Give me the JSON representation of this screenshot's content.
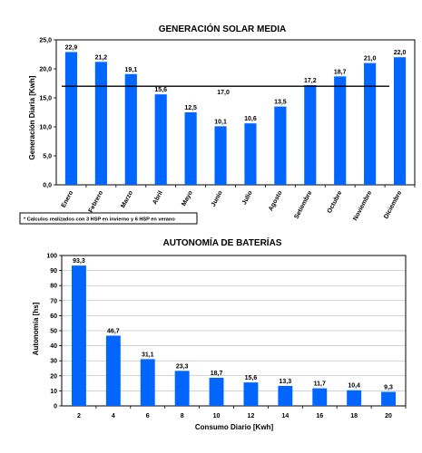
{
  "chart_data": [
    {
      "type": "bar",
      "title": "GENERACIÓN SOLAR MEDIA",
      "ylabel": "Generación Diaria [Kwh]",
      "xlabel": "",
      "categories": [
        "Enero",
        "Febrero",
        "Marzo",
        "Abril",
        "Mayo",
        "Junio",
        "Julio",
        "Agosto",
        "Setiembre",
        "Octubre",
        "Noviembre",
        "Diciembre"
      ],
      "values": [
        22.9,
        21.2,
        19.1,
        15.6,
        12.5,
        10.1,
        10.6,
        13.5,
        17.2,
        18.7,
        21.0,
        22.0
      ],
      "value_labels": [
        "22,9",
        "21,2",
        "19,1",
        "15,6",
        "12,5",
        "10,1",
        "10,6",
        "13,5",
        "17,2",
        "18,7",
        "21,0",
        "22,0"
      ],
      "ylim": [
        0,
        25
      ],
      "yticks": [
        0,
        5,
        10,
        15,
        20,
        25
      ],
      "ytick_labels": [
        "0,0",
        "5,0",
        "10,0",
        "15,0",
        "20,0",
        "25,0"
      ],
      "reference_line": {
        "value": 17.0,
        "label": "17,0"
      },
      "grid": false,
      "legend": "none",
      "bar_color": "#0066ff",
      "note": "* Calculos realizados con 3 HSP en invierno y 6 HSP en verano"
    },
    {
      "type": "bar",
      "title": "AUTONOMÍA DE BATERÍAS",
      "ylabel": "Autonomía [hs]",
      "xlabel": "Consumo Diario [Kwh]",
      "categories": [
        "2",
        "4",
        "6",
        "8",
        "10",
        "12",
        "14",
        "16",
        "18",
        "20"
      ],
      "values": [
        93.3,
        46.7,
        31.1,
        23.3,
        18.7,
        15.6,
        13.3,
        11.7,
        10.4,
        9.3
      ],
      "value_labels": [
        "93,3",
        "46,7",
        "31,1",
        "23,3",
        "18,7",
        "15,6",
        "13,3",
        "11,7",
        "10,4",
        "9,3"
      ],
      "ylim": [
        0,
        100
      ],
      "yticks": [
        0,
        10,
        20,
        30,
        40,
        50,
        60,
        70,
        80,
        90,
        100
      ],
      "ytick_labels": [
        "0",
        "10",
        "20",
        "30",
        "40",
        "50",
        "60",
        "70",
        "80",
        "90",
        "100"
      ],
      "grid": true,
      "legend": "none",
      "bar_color": "#0066ff"
    }
  ]
}
